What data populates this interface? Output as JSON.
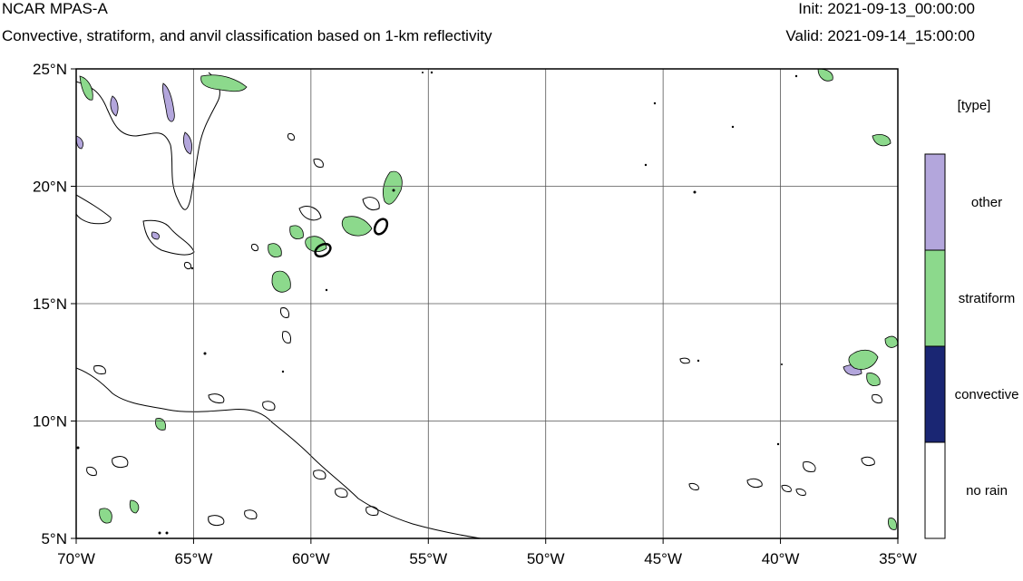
{
  "header": {
    "model": "NCAR MPAS-A",
    "description": "Convective, stratiform, and anvil classification based on 1-km reflectivity",
    "init": "Init: 2021-09-13_00:00:00",
    "valid": "Valid: 2021-09-14_15:00:00"
  },
  "map": {
    "lon_range": [
      -70,
      -35
    ],
    "lat_range": [
      5,
      25
    ],
    "lon_ticks": [
      {
        "value": -70,
        "label": "70°W"
      },
      {
        "value": -65,
        "label": "65°W"
      },
      {
        "value": -60,
        "label": "60°W"
      },
      {
        "value": -55,
        "label": "55°W"
      },
      {
        "value": -50,
        "label": "50°W"
      },
      {
        "value": -45,
        "label": "45°W"
      },
      {
        "value": -40,
        "label": "40°W"
      },
      {
        "value": -35,
        "label": "35°W"
      }
    ],
    "lat_ticks": [
      {
        "value": 25,
        "label": "25°N"
      },
      {
        "value": 20,
        "label": "20°N"
      },
      {
        "value": 15,
        "label": "15°N"
      },
      {
        "value": 10,
        "label": "10°N"
      },
      {
        "value": 5,
        "label": "5°N"
      }
    ],
    "grid": true,
    "colors": {
      "other": "#b3a6dc",
      "stratiform": "#8cd98c",
      "convective": "#1a2673",
      "no_rain": "#ffffff",
      "coastline": "#000000",
      "gridline": "#555555"
    }
  },
  "legend": {
    "title": "[type]",
    "items": [
      {
        "label": "other",
        "color": "#b3a6dc"
      },
      {
        "label": "stratiform",
        "color": "#8cd98c"
      },
      {
        "label": "convective",
        "color": "#1a2673"
      },
      {
        "label": "no rain",
        "color": "#ffffff"
      }
    ]
  }
}
